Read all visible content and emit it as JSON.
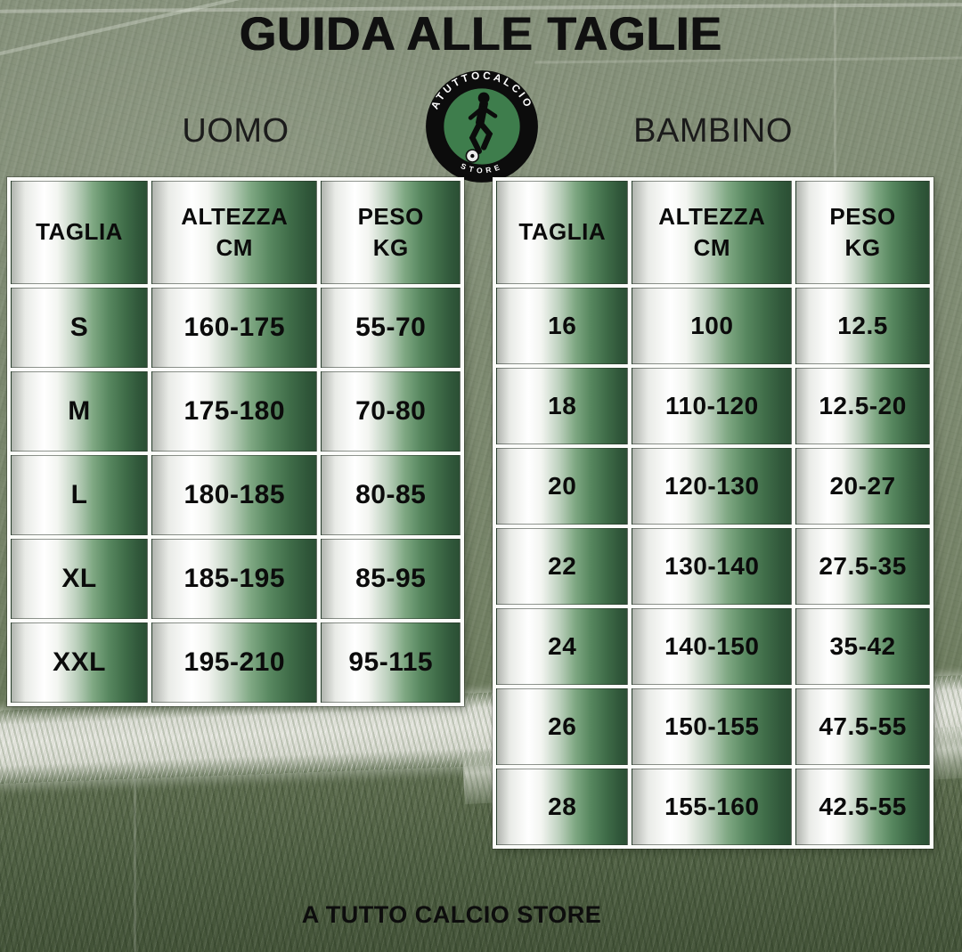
{
  "page": {
    "title": "GUIDA ALLE TAGLIE",
    "footer": "A TUTTO CALCIO STORE"
  },
  "logo": {
    "text_top": "ATUTTOCALCIO",
    "text_bottom": "STORE",
    "icon": "soccer-player-icon",
    "ring_color": "#0c0c0c",
    "inner_color": "#3e7d4c",
    "text_color": "#ffffff"
  },
  "tables": [
    {
      "id": "uomo",
      "label": "UOMO",
      "headers": [
        "TAGLIA",
        "ALTEZZA\nCM",
        "PESO\nKG"
      ],
      "rows": [
        [
          "S",
          "160-175",
          "55-70"
        ],
        [
          "M",
          "175-180",
          "70-80"
        ],
        [
          "L",
          "180-185",
          "80-85"
        ],
        [
          "XL",
          "185-195",
          "85-95"
        ],
        [
          "XXL",
          "195-210",
          "95-115"
        ]
      ]
    },
    {
      "id": "bambino",
      "label": "BAMBINO",
      "headers": [
        "TAGLIA",
        "ALTEZZA\nCM",
        "PESO\nKG"
      ],
      "rows": [
        [
          "16",
          "100",
          "12.5"
        ],
        [
          "18",
          "110-120",
          "12.5-20"
        ],
        [
          "20",
          "120-130",
          "20-27"
        ],
        [
          "22",
          "130-140",
          "27.5-35"
        ],
        [
          "24",
          "140-150",
          "35-42"
        ],
        [
          "26",
          "150-155",
          "47.5-55"
        ],
        [
          "28",
          "155-160",
          "42.5-55"
        ]
      ]
    }
  ],
  "colors": {
    "grass": "#7a8870",
    "grass_dark": "#4d5d40",
    "chalk_line": "#dcded5",
    "cell_green_dark": "#2b4f34",
    "cell_white": "#ffffff",
    "text": "#101010",
    "logo_green": "#3e7d4c"
  }
}
